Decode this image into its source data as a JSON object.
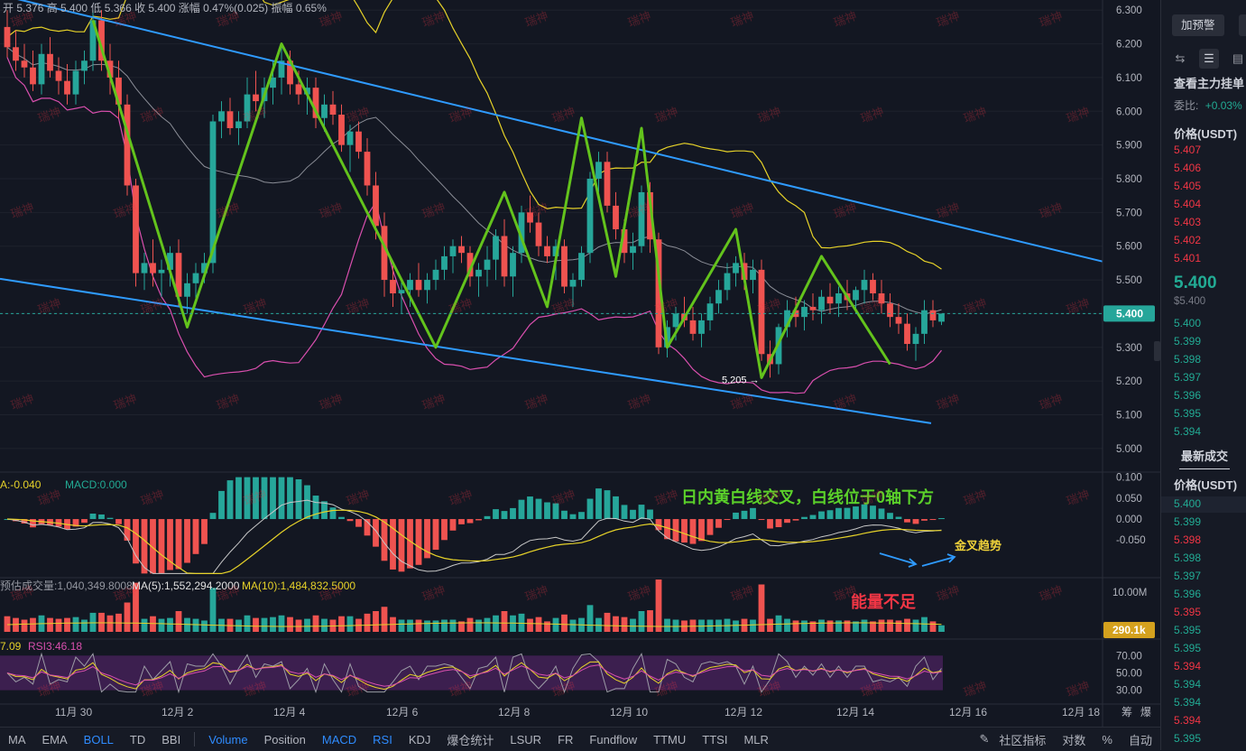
{
  "header": {
    "ohlc": "开 5.376 高 5.400 低 5.366 收 5.400 涨幅 0.47%(0.025) 振幅 0.65%",
    "watermark": "瑞神"
  },
  "colors": {
    "background": "#131722",
    "bull": "#26a69a",
    "bear": "#ef5350",
    "channel": "#2f9bff",
    "zigzag": "#63c31c",
    "boll_upper": "#e6d229",
    "boll_mid": "#8a8d96",
    "boll_lower": "#d94fae",
    "annotation_green": "#5bd12a",
    "annotation_red": "#f23645",
    "annotation_yellow": "#f0d23a"
  },
  "price_axis": {
    "ticks": [
      "6.300",
      "6.200",
      "6.100",
      "6.000",
      "5.900",
      "5.800",
      "5.700",
      "5.600",
      "5.500",
      "5.400",
      "5.300",
      "5.200",
      "5.100",
      "5.000"
    ],
    "current": "5.400"
  },
  "macd": {
    "legend_prefix": "A:-0.040",
    "legend_macd": "MACD:0.000",
    "ticks": [
      "0.100",
      "0.050",
      "0.000",
      "-0.050"
    ],
    "annotation": "日内黄白线交叉，白线位于0轴下方",
    "trend_label": "金叉趋势"
  },
  "volume": {
    "legend_a": "预估成交量:1,040,349.8008",
    "legend_ma5": "MA(5):1,552,294.2000",
    "legend_ma10": "MA(10):1,484,832.5000",
    "tick_top": "10.00M",
    "badge": "290.1k",
    "annotation": "能量不足"
  },
  "rsi": {
    "legend_a": "7.09",
    "legend_b": "RSI3:46.18",
    "ticks": [
      "70.00",
      "50.00",
      "30.00"
    ]
  },
  "x_axis": {
    "labels": [
      "11月 30",
      "12月 2",
      "12月 4",
      "12月 6",
      "12月 8",
      "12月 10",
      "12月 12",
      "12月 14",
      "12月 16",
      "12月 18"
    ]
  },
  "low_marker": "5.205",
  "toolbar": {
    "left": [
      "MA",
      "EMA",
      "BOLL",
      "TD",
      "BBI"
    ],
    "right": [
      "Volume",
      "Position",
      "MACD",
      "RSI",
      "KDJ",
      "爆仓统计",
      "LSUR",
      "FR",
      "Fundflow",
      "TTMU",
      "TTSI",
      "MLR"
    ],
    "active": [
      "BOLL",
      "Volume",
      "MACD",
      "RSI"
    ],
    "community": "社区指标",
    "log": "对数",
    "percent": "%",
    "auto": "自动"
  },
  "corner": {
    "a": "筹",
    "b": "爆"
  },
  "panel": {
    "alert_button": "加预警",
    "title": "查看主力挂单",
    "ratio_label": "委比:",
    "ratio_value": "+0.03%",
    "price_header": "价格(USDT)",
    "asks": [
      "5.407",
      "5.406",
      "5.405",
      "5.404",
      "5.403",
      "5.402",
      "5.401"
    ],
    "last_price": "5.400",
    "last_price_usd": "$5.400",
    "bids": [
      "5.400",
      "5.399",
      "5.398",
      "5.397",
      "5.396",
      "5.395",
      "5.394"
    ],
    "trades_title": "最新成交",
    "trades_header": "价格(USDT)",
    "trades": [
      {
        "p": "5.400",
        "c": "g"
      },
      {
        "p": "5.399",
        "c": "g"
      },
      {
        "p": "5.398",
        "c": "r"
      },
      {
        "p": "5.398",
        "c": "g"
      },
      {
        "p": "5.397",
        "c": "g"
      },
      {
        "p": "5.396",
        "c": "g"
      },
      {
        "p": "5.395",
        "c": "r"
      },
      {
        "p": "5.395",
        "c": "g"
      },
      {
        "p": "5.395",
        "c": "g"
      },
      {
        "p": "5.394",
        "c": "r"
      },
      {
        "p": "5.394",
        "c": "g"
      },
      {
        "p": "5.394",
        "c": "g"
      },
      {
        "p": "5.394",
        "c": "r"
      },
      {
        "p": "5.395",
        "c": "g"
      }
    ]
  },
  "chart_data": {
    "type": "candlestick",
    "timeframe_labels": [
      "11月 30",
      "12月 2",
      "12月 4",
      "12月 6",
      "12月 8",
      "12月 10",
      "12月 12",
      "12月 14",
      "12月 16",
      "12月 18"
    ],
    "ylim": [
      4.93,
      6.33
    ],
    "candles": [
      {
        "o": 6.25,
        "h": 6.3,
        "l": 6.16,
        "c": 6.19
      },
      {
        "o": 6.19,
        "h": 6.24,
        "l": 6.12,
        "c": 6.15
      },
      {
        "o": 6.15,
        "h": 6.2,
        "l": 6.1,
        "c": 6.13
      },
      {
        "o": 6.13,
        "h": 6.18,
        "l": 6.06,
        "c": 6.08
      },
      {
        "o": 6.08,
        "h": 6.2,
        "l": 6.05,
        "c": 6.17
      },
      {
        "o": 6.17,
        "h": 6.22,
        "l": 6.1,
        "c": 6.12
      },
      {
        "o": 6.12,
        "h": 6.16,
        "l": 6.05,
        "c": 6.09
      },
      {
        "o": 6.09,
        "h": 6.14,
        "l": 6.02,
        "c": 6.05
      },
      {
        "o": 6.05,
        "h": 6.15,
        "l": 6.02,
        "c": 6.12
      },
      {
        "o": 6.12,
        "h": 6.18,
        "l": 6.08,
        "c": 6.15
      },
      {
        "o": 6.15,
        "h": 6.3,
        "l": 6.12,
        "c": 6.27
      },
      {
        "o": 6.27,
        "h": 6.3,
        "l": 6.12,
        "c": 6.15
      },
      {
        "o": 6.15,
        "h": 6.2,
        "l": 6.05,
        "c": 6.1
      },
      {
        "o": 6.1,
        "h": 6.15,
        "l": 5.98,
        "c": 6.02
      },
      {
        "o": 6.02,
        "h": 6.05,
        "l": 5.75,
        "c": 5.78
      },
      {
        "o": 5.78,
        "h": 5.8,
        "l": 5.48,
        "c": 5.52
      },
      {
        "o": 5.52,
        "h": 5.58,
        "l": 5.47,
        "c": 5.55
      },
      {
        "o": 5.55,
        "h": 5.62,
        "l": 5.48,
        "c": 5.52
      },
      {
        "o": 5.52,
        "h": 5.56,
        "l": 5.45,
        "c": 5.53
      },
      {
        "o": 5.53,
        "h": 5.6,
        "l": 5.48,
        "c": 5.58
      },
      {
        "o": 5.58,
        "h": 5.62,
        "l": 5.42,
        "c": 5.45
      },
      {
        "o": 5.45,
        "h": 5.52,
        "l": 5.4,
        "c": 5.49
      },
      {
        "o": 5.49,
        "h": 5.55,
        "l": 5.44,
        "c": 5.52
      },
      {
        "o": 5.52,
        "h": 5.58,
        "l": 5.49,
        "c": 5.55
      },
      {
        "o": 5.55,
        "h": 5.99,
        "l": 5.52,
        "c": 5.97
      },
      {
        "o": 5.97,
        "h": 6.03,
        "l": 5.92,
        "c": 6.0
      },
      {
        "o": 6.0,
        "h": 6.04,
        "l": 5.93,
        "c": 5.95
      },
      {
        "o": 5.95,
        "h": 6.0,
        "l": 5.9,
        "c": 5.97
      },
      {
        "o": 5.97,
        "h": 6.1,
        "l": 5.95,
        "c": 6.05
      },
      {
        "o": 6.05,
        "h": 6.12,
        "l": 6.0,
        "c": 6.03
      },
      {
        "o": 6.03,
        "h": 6.1,
        "l": 5.98,
        "c": 6.07
      },
      {
        "o": 6.07,
        "h": 6.15,
        "l": 6.02,
        "c": 6.1
      },
      {
        "o": 6.1,
        "h": 6.2,
        "l": 6.05,
        "c": 6.15
      },
      {
        "o": 6.15,
        "h": 6.18,
        "l": 6.05,
        "c": 6.08
      },
      {
        "o": 6.08,
        "h": 6.12,
        "l": 6.02,
        "c": 6.05
      },
      {
        "o": 6.05,
        "h": 6.1,
        "l": 5.99,
        "c": 6.07
      },
      {
        "o": 6.07,
        "h": 6.1,
        "l": 5.95,
        "c": 5.98
      },
      {
        "o": 5.98,
        "h": 6.05,
        "l": 5.94,
        "c": 6.02
      },
      {
        "o": 6.02,
        "h": 6.06,
        "l": 5.96,
        "c": 5.99
      },
      {
        "o": 5.99,
        "h": 6.02,
        "l": 5.88,
        "c": 5.9
      },
      {
        "o": 5.9,
        "h": 5.96,
        "l": 5.82,
        "c": 5.94
      },
      {
        "o": 5.94,
        "h": 5.97,
        "l": 5.86,
        "c": 5.88
      },
      {
        "o": 5.88,
        "h": 5.92,
        "l": 5.75,
        "c": 5.78
      },
      {
        "o": 5.78,
        "h": 5.82,
        "l": 5.62,
        "c": 5.66
      },
      {
        "o": 5.66,
        "h": 5.7,
        "l": 5.45,
        "c": 5.5
      },
      {
        "o": 5.5,
        "h": 5.55,
        "l": 5.42,
        "c": 5.46
      },
      {
        "o": 5.46,
        "h": 5.5,
        "l": 5.4,
        "c": 5.47
      },
      {
        "o": 5.47,
        "h": 5.52,
        "l": 5.42,
        "c": 5.5
      },
      {
        "o": 5.5,
        "h": 5.55,
        "l": 5.45,
        "c": 5.47
      },
      {
        "o": 5.47,
        "h": 5.52,
        "l": 5.43,
        "c": 5.5
      },
      {
        "o": 5.5,
        "h": 5.56,
        "l": 5.47,
        "c": 5.53
      },
      {
        "o": 5.53,
        "h": 5.6,
        "l": 5.5,
        "c": 5.57
      },
      {
        "o": 5.57,
        "h": 5.62,
        "l": 5.52,
        "c": 5.6
      },
      {
        "o": 5.6,
        "h": 5.63,
        "l": 5.55,
        "c": 5.58
      },
      {
        "o": 5.58,
        "h": 5.6,
        "l": 5.48,
        "c": 5.51
      },
      {
        "o": 5.51,
        "h": 5.55,
        "l": 5.45,
        "c": 5.53
      },
      {
        "o": 5.53,
        "h": 5.6,
        "l": 5.48,
        "c": 5.56
      },
      {
        "o": 5.56,
        "h": 5.65,
        "l": 5.5,
        "c": 5.63
      },
      {
        "o": 5.63,
        "h": 5.68,
        "l": 5.48,
        "c": 5.51
      },
      {
        "o": 5.51,
        "h": 5.6,
        "l": 5.45,
        "c": 5.58
      },
      {
        "o": 5.58,
        "h": 5.72,
        "l": 5.55,
        "c": 5.7
      },
      {
        "o": 5.7,
        "h": 5.75,
        "l": 5.64,
        "c": 5.67
      },
      {
        "o": 5.67,
        "h": 5.7,
        "l": 5.57,
        "c": 5.6
      },
      {
        "o": 5.6,
        "h": 5.63,
        "l": 5.55,
        "c": 5.57
      },
      {
        "o": 5.57,
        "h": 5.62,
        "l": 5.5,
        "c": 5.6
      },
      {
        "o": 5.6,
        "h": 5.62,
        "l": 5.46,
        "c": 5.48
      },
      {
        "o": 5.48,
        "h": 5.52,
        "l": 5.42,
        "c": 5.5
      },
      {
        "o": 5.5,
        "h": 5.6,
        "l": 5.48,
        "c": 5.58
      },
      {
        "o": 5.58,
        "h": 5.82,
        "l": 5.55,
        "c": 5.8
      },
      {
        "o": 5.8,
        "h": 5.88,
        "l": 5.76,
        "c": 5.85
      },
      {
        "o": 5.85,
        "h": 5.88,
        "l": 5.7,
        "c": 5.72
      },
      {
        "o": 5.72,
        "h": 5.76,
        "l": 5.62,
        "c": 5.65
      },
      {
        "o": 5.65,
        "h": 5.68,
        "l": 5.55,
        "c": 5.58
      },
      {
        "o": 5.58,
        "h": 5.64,
        "l": 5.53,
        "c": 5.6
      },
      {
        "o": 5.6,
        "h": 5.78,
        "l": 5.58,
        "c": 5.76
      },
      {
        "o": 5.76,
        "h": 5.79,
        "l": 5.58,
        "c": 5.62
      },
      {
        "o": 5.62,
        "h": 5.64,
        "l": 5.28,
        "c": 5.3
      },
      {
        "o": 5.3,
        "h": 5.38,
        "l": 5.27,
        "c": 5.36
      },
      {
        "o": 5.36,
        "h": 5.42,
        "l": 5.32,
        "c": 5.4
      },
      {
        "o": 5.4,
        "h": 5.45,
        "l": 5.36,
        "c": 5.38
      },
      {
        "o": 5.38,
        "h": 5.42,
        "l": 5.32,
        "c": 5.34
      },
      {
        "o": 5.34,
        "h": 5.4,
        "l": 5.3,
        "c": 5.38
      },
      {
        "o": 5.38,
        "h": 5.45,
        "l": 5.35,
        "c": 5.43
      },
      {
        "o": 5.43,
        "h": 5.5,
        "l": 5.4,
        "c": 5.47
      },
      {
        "o": 5.47,
        "h": 5.55,
        "l": 5.44,
        "c": 5.52
      },
      {
        "o": 5.52,
        "h": 5.57,
        "l": 5.48,
        "c": 5.55
      },
      {
        "o": 5.55,
        "h": 5.58,
        "l": 5.47,
        "c": 5.5
      },
      {
        "o": 5.5,
        "h": 5.56,
        "l": 5.46,
        "c": 5.53
      },
      {
        "o": 5.53,
        "h": 5.56,
        "l": 5.26,
        "c": 5.28
      },
      {
        "o": 5.28,
        "h": 5.32,
        "l": 5.21,
        "c": 5.25
      },
      {
        "o": 5.25,
        "h": 5.37,
        "l": 5.22,
        "c": 5.36
      },
      {
        "o": 5.36,
        "h": 5.44,
        "l": 5.33,
        "c": 5.41
      },
      {
        "o": 5.41,
        "h": 5.45,
        "l": 5.36,
        "c": 5.39
      },
      {
        "o": 5.39,
        "h": 5.44,
        "l": 5.35,
        "c": 5.42
      },
      {
        "o": 5.42,
        "h": 5.46,
        "l": 5.38,
        "c": 5.41
      },
      {
        "o": 5.41,
        "h": 5.47,
        "l": 5.37,
        "c": 5.45
      },
      {
        "o": 5.45,
        "h": 5.49,
        "l": 5.4,
        "c": 5.43
      },
      {
        "o": 5.43,
        "h": 5.48,
        "l": 5.39,
        "c": 5.46
      },
      {
        "o": 5.46,
        "h": 5.5,
        "l": 5.41,
        "c": 5.44
      },
      {
        "o": 5.44,
        "h": 5.48,
        "l": 5.4,
        "c": 5.47
      },
      {
        "o": 5.47,
        "h": 5.53,
        "l": 5.43,
        "c": 5.5
      },
      {
        "o": 5.5,
        "h": 5.52,
        "l": 5.44,
        "c": 5.46
      },
      {
        "o": 5.46,
        "h": 5.5,
        "l": 5.4,
        "c": 5.43
      },
      {
        "o": 5.43,
        "h": 5.46,
        "l": 5.36,
        "c": 5.39
      },
      {
        "o": 5.39,
        "h": 5.43,
        "l": 5.34,
        "c": 5.37
      },
      {
        "o": 5.37,
        "h": 5.4,
        "l": 5.29,
        "c": 5.31
      },
      {
        "o": 5.31,
        "h": 5.36,
        "l": 5.26,
        "c": 5.34
      },
      {
        "o": 5.34,
        "h": 5.44,
        "l": 5.31,
        "c": 5.41
      },
      {
        "o": 5.41,
        "h": 5.44,
        "l": 5.36,
        "c": 5.38
      },
      {
        "o": 5.376,
        "h": 5.4,
        "l": 5.366,
        "c": 5.4
      }
    ],
    "zigzag": [
      [
        6.27,
        "c10"
      ],
      [
        5.36,
        "c21"
      ],
      [
        6.2,
        "c32"
      ],
      [
        5.3,
        "c50"
      ],
      [
        5.76,
        "c58"
      ],
      [
        5.42,
        "c63"
      ],
      [
        5.98,
        "c67"
      ],
      [
        5.51,
        "c71"
      ],
      [
        5.95,
        "c74"
      ],
      [
        5.3,
        "c77"
      ],
      [
        5.65,
        "c85"
      ],
      [
        5.21,
        "c88"
      ],
      [
        5.57,
        "c95"
      ],
      [
        5.25,
        "c103"
      ]
    ],
    "channel": {
      "upper": [
        [
          0,
          6.34
        ],
        [
          109,
          5.67
        ]
      ],
      "lower": [
        [
          0,
          5.5
        ],
        [
          109,
          5.07
        ]
      ]
    },
    "macd_range": [
      -0.14,
      0.11
    ],
    "volume_max": "10.00M",
    "rsi_levels": [
      70,
      50,
      30
    ]
  }
}
